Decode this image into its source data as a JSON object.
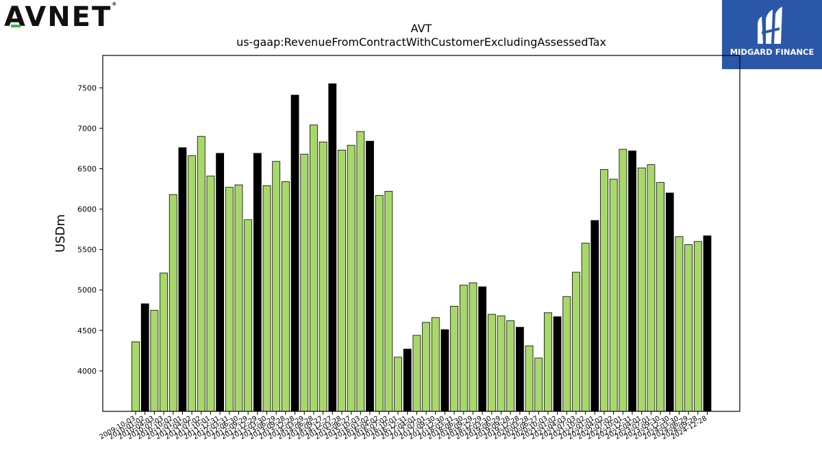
{
  "logos": {
    "left_text": "AVNET",
    "right_text": "MIDGARD FINANCE",
    "brand_blue": "#2b57a8",
    "avnet_green": "#3cb44a"
  },
  "chart_data": {
    "type": "bar",
    "title": "AVT",
    "subtitle": "us-gaap:RevenueFromContractWithCustomerExcludingAssessedTax",
    "ylabel": "USDm",
    "xlabel": "",
    "ylim": [
      3500,
      7900
    ],
    "yticks": [
      4000,
      4500,
      5000,
      5500,
      6000,
      6500,
      7000,
      7500
    ],
    "grid": false,
    "colors": {
      "quarter": "#a8d86a",
      "fiscal_year_end": "#000000",
      "edge": "#000000"
    },
    "categories": [
      "2009-10-03",
      "2010-01-02",
      "2010-04-03",
      "2010-07-03",
      "2010-10-02",
      "2011-01-01",
      "2011-04-02",
      "2011-07-02",
      "2011-10-01",
      "2011-12-31",
      "2012-03-31",
      "2012-06-30",
      "2012-09-29",
      "2012-12-29",
      "2013-03-30",
      "2013-06-29",
      "2013-09-28",
      "2013-12-28",
      "2014-03-29",
      "2014-06-28",
      "2014-09-27",
      "2014-12-27",
      "2015-03-28",
      "2015-06-27",
      "2015-10-03",
      "2016-01-02",
      "2016-04-02",
      "2016-07-02",
      "2016-10-01",
      "2016-12-31",
      "2017-04-01",
      "2017-07-01",
      "2017-09-30",
      "2017-12-30",
      "2018-03-31",
      "2018-06-30",
      "2018-09-29",
      "2018-12-29",
      "2019-03-30",
      "2019-06-29",
      "2019-09-28",
      "2019-12-28",
      "2020-03-28",
      "2020-06-27",
      "2020-10-03",
      "2021-01-02",
      "2021-04-03",
      "2021-07-03",
      "2021-10-02",
      "2022-01-01",
      "2022-04-02",
      "2022-07-02",
      "2022-10-01",
      "2022-12-31",
      "2023-04-01",
      "2023-07-01",
      "2023-09-30",
      "2023-12-30",
      "2024-03-30",
      "2024-06-29",
      "2024-09-28",
      "2024-12-28"
    ],
    "values": [
      4360,
      4830,
      4750,
      5210,
      6180,
      6760,
      6660,
      6900,
      6410,
      6690,
      6270,
      6300,
      5870,
      6690,
      6290,
      6590,
      6340,
      7410,
      6680,
      7040,
      6830,
      7550,
      6730,
      6790,
      6960,
      6840,
      6170,
      6220,
      4170,
      4270,
      4440,
      4600,
      4660,
      4510,
      4800,
      5060,
      5090,
      5040,
      4700,
      4680,
      4620,
      4540,
      4310,
      4160,
      4720,
      4670,
      4920,
      5220,
      5580,
      5860,
      6490,
      6370,
      6740,
      6720,
      6510,
      6550,
      6330,
      6200,
      5660,
      5560,
      5600,
      5670
    ],
    "fiscal_year_end_flags": [
      0,
      1,
      0,
      0,
      0,
      1,
      0,
      0,
      0,
      1,
      0,
      0,
      0,
      1,
      0,
      0,
      0,
      1,
      0,
      0,
      0,
      1,
      0,
      0,
      0,
      1,
      0,
      0,
      0,
      1,
      0,
      0,
      0,
      1,
      0,
      0,
      0,
      1,
      0,
      0,
      0,
      1,
      0,
      0,
      0,
      1,
      0,
      0,
      0,
      1,
      0,
      0,
      0,
      1,
      0,
      0,
      0,
      1,
      0,
      0,
      0,
      1
    ]
  }
}
